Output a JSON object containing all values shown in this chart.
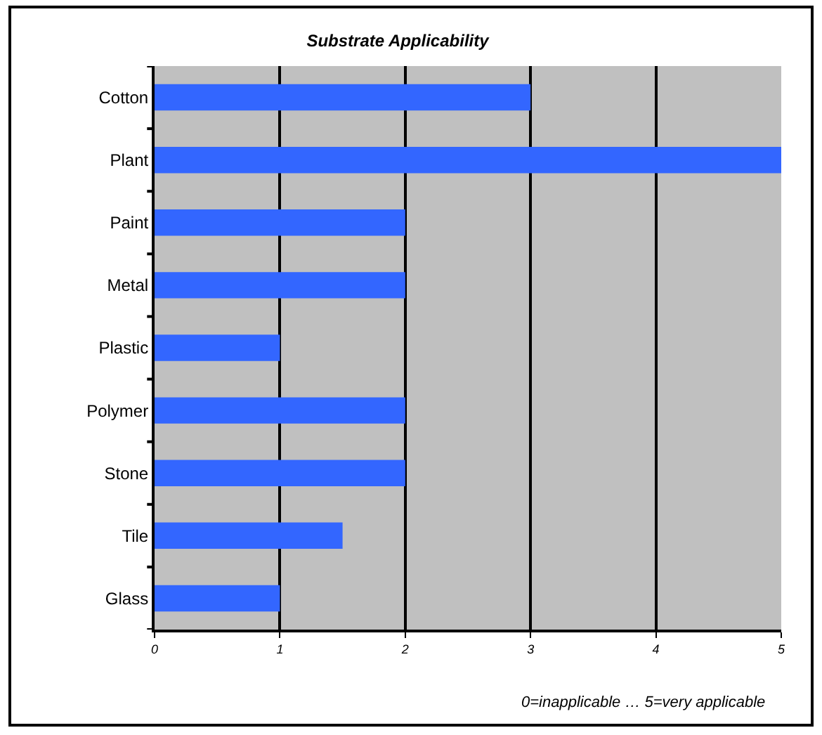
{
  "chart_data": {
    "type": "bar",
    "orientation": "horizontal",
    "title": "Substrate Applicability",
    "categories": [
      "Cotton",
      "Plant",
      "Paint",
      "Metal",
      "Plastic",
      "Polymer",
      "Stone",
      "Tile",
      "Glass"
    ],
    "values": [
      3,
      5,
      2,
      2,
      1,
      2,
      2,
      1.5,
      1
    ],
    "color": "#3366ff",
    "xlim": [
      0,
      5
    ],
    "xticks": [
      0,
      1,
      2,
      3,
      4,
      5
    ],
    "grid": "x",
    "annotations": [
      "0=inapplicable … 5=very applicable"
    ]
  }
}
